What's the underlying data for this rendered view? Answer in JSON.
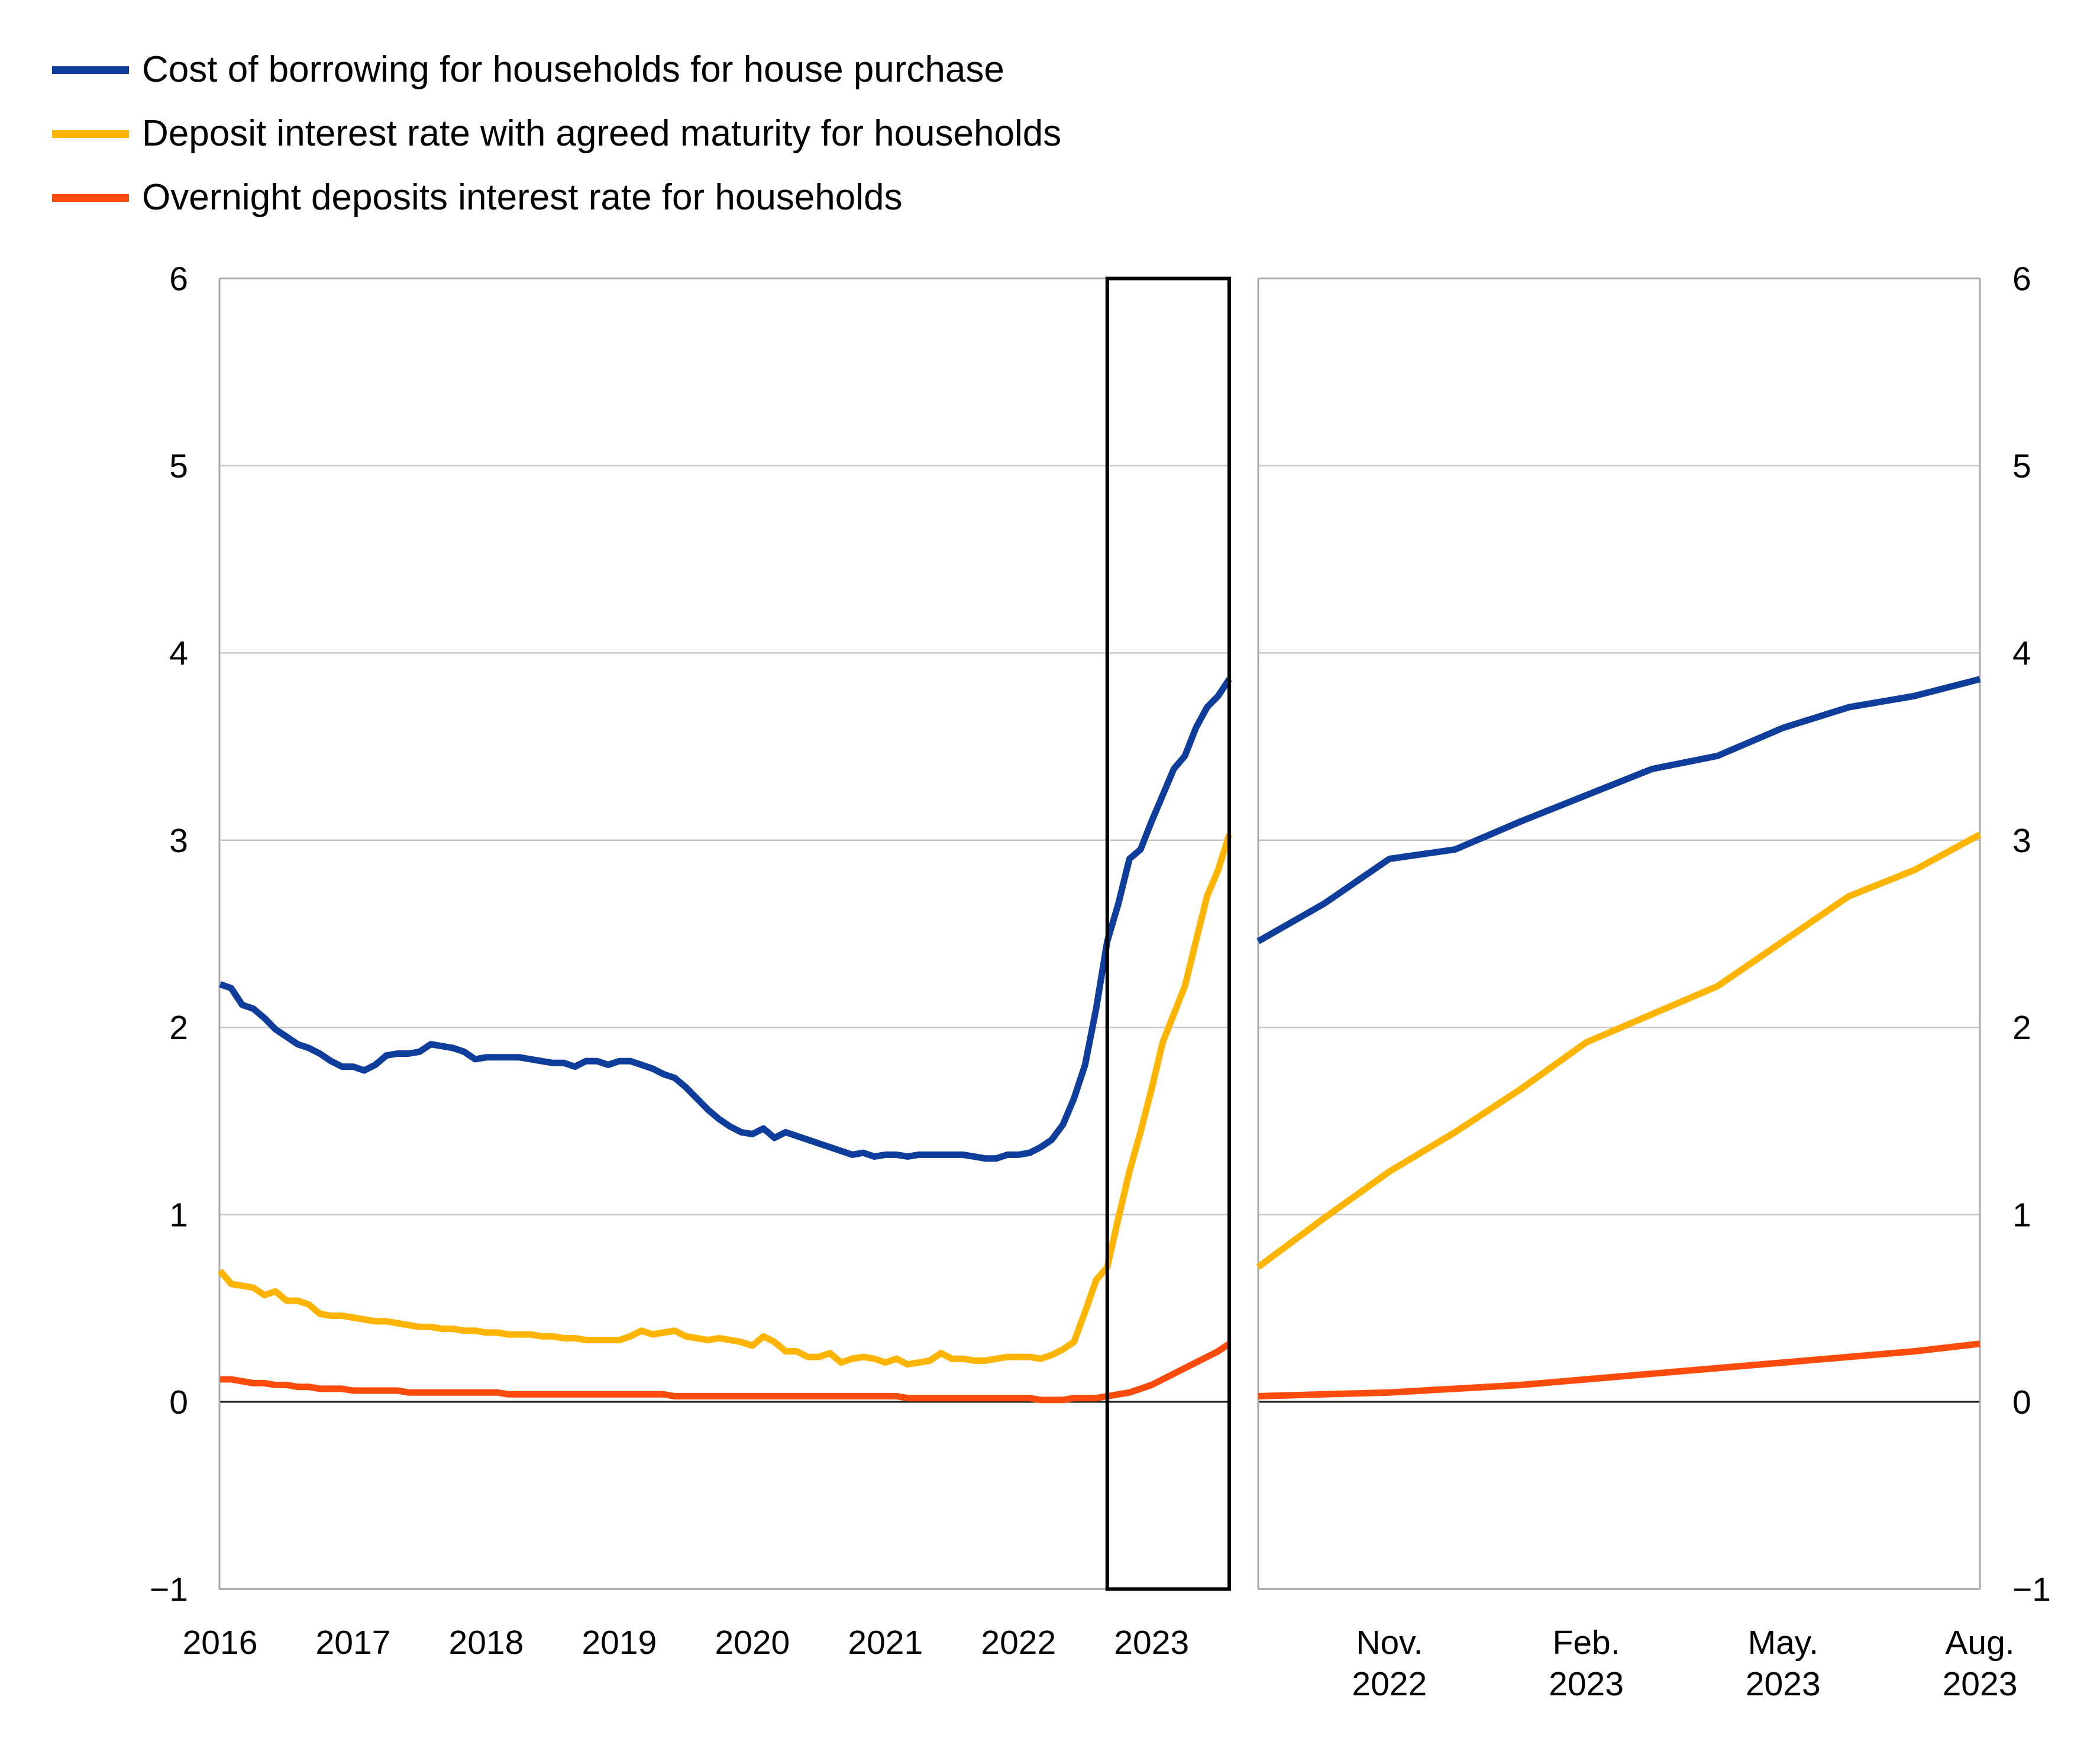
{
  "legend": {
    "items": [
      {
        "label": "Cost of borrowing for households for house purchase",
        "color": "#0f3d9c"
      },
      {
        "label": "Deposit interest rate with agreed maturity for households",
        "color": "#ffb400"
      },
      {
        "label": "Overnight deposits interest rate for households",
        "color": "#fc4b0b"
      }
    ]
  },
  "axes": {
    "y_tick_labels": [
      "6",
      "5",
      "4",
      "3",
      "2",
      "1",
      "0",
      "−1"
    ],
    "y_tick_values": [
      6,
      5,
      4,
      3,
      2,
      1,
      0,
      -1
    ],
    "left_x_tick_labels": [
      "2016",
      "2017",
      "2018",
      "2019",
      "2020",
      "2021",
      "2022",
      "2023"
    ],
    "right_x_tick_labels": [
      {
        "line1": "Nov.",
        "line2": "2022"
      },
      {
        "line1": "Feb.",
        "line2": "2023"
      },
      {
        "line1": "May.",
        "line2": "2023"
      },
      {
        "line1": "Aug.",
        "line2": "2023"
      }
    ]
  },
  "chart_data": [
    {
      "type": "line",
      "panel": "left",
      "x_start": "2016-01",
      "x_end": "2023-08",
      "x_frequency": "monthly",
      "x_tick_labels": [
        "2016",
        "2017",
        "2018",
        "2019",
        "2020",
        "2021",
        "2022",
        "2023"
      ],
      "ylim": [
        -1,
        6
      ],
      "grid": "horizontal",
      "highlight_box": {
        "from": "2022-09",
        "to": "2023-08",
        "color": "#000000"
      },
      "series": [
        {
          "name": "Cost of borrowing for households for house purchase",
          "color": "#0f3d9c",
          "values": [
            2.23,
            2.21,
            2.12,
            2.1,
            2.05,
            1.99,
            1.95,
            1.91,
            1.89,
            1.86,
            1.82,
            1.79,
            1.79,
            1.77,
            1.8,
            1.85,
            1.86,
            1.86,
            1.87,
            1.91,
            1.9,
            1.89,
            1.87,
            1.83,
            1.84,
            1.84,
            1.84,
            1.84,
            1.83,
            1.82,
            1.81,
            1.81,
            1.79,
            1.82,
            1.82,
            1.8,
            1.82,
            1.82,
            1.8,
            1.78,
            1.75,
            1.73,
            1.68,
            1.62,
            1.56,
            1.51,
            1.47,
            1.44,
            1.43,
            1.46,
            1.41,
            1.44,
            1.42,
            1.4,
            1.38,
            1.36,
            1.34,
            1.32,
            1.33,
            1.31,
            1.32,
            1.32,
            1.31,
            1.32,
            1.32,
            1.32,
            1.32,
            1.32,
            1.31,
            1.3,
            1.3,
            1.32,
            1.32,
            1.33,
            1.36,
            1.4,
            1.48,
            1.62,
            1.8,
            2.1,
            2.46,
            2.66,
            2.9,
            2.95,
            3.1,
            3.24,
            3.38,
            3.45,
            3.6,
            3.71,
            3.77,
            3.86
          ]
        },
        {
          "name": "Deposit interest rate with agreed maturity for households",
          "color": "#ffb400",
          "values": [
            0.7,
            0.63,
            0.62,
            0.61,
            0.57,
            0.59,
            0.54,
            0.54,
            0.52,
            0.47,
            0.46,
            0.46,
            0.45,
            0.44,
            0.43,
            0.43,
            0.42,
            0.41,
            0.4,
            0.4,
            0.39,
            0.39,
            0.38,
            0.38,
            0.37,
            0.37,
            0.36,
            0.36,
            0.36,
            0.35,
            0.35,
            0.34,
            0.34,
            0.33,
            0.33,
            0.33,
            0.33,
            0.35,
            0.38,
            0.36,
            0.37,
            0.38,
            0.35,
            0.34,
            0.33,
            0.34,
            0.33,
            0.32,
            0.3,
            0.35,
            0.32,
            0.27,
            0.27,
            0.24,
            0.24,
            0.26,
            0.21,
            0.23,
            0.24,
            0.23,
            0.21,
            0.23,
            0.2,
            0.21,
            0.22,
            0.26,
            0.23,
            0.23,
            0.22,
            0.22,
            0.23,
            0.24,
            0.24,
            0.24,
            0.23,
            0.25,
            0.28,
            0.32,
            0.48,
            0.65,
            0.72,
            0.98,
            1.23,
            1.44,
            1.67,
            1.92,
            2.07,
            2.22,
            2.46,
            2.7,
            2.84,
            3.03
          ]
        },
        {
          "name": "Overnight deposits interest rate for households",
          "color": "#fc4b0b",
          "values": [
            0.12,
            0.12,
            0.11,
            0.1,
            0.1,
            0.09,
            0.09,
            0.08,
            0.08,
            0.07,
            0.07,
            0.07,
            0.06,
            0.06,
            0.06,
            0.06,
            0.06,
            0.05,
            0.05,
            0.05,
            0.05,
            0.05,
            0.05,
            0.05,
            0.05,
            0.05,
            0.04,
            0.04,
            0.04,
            0.04,
            0.04,
            0.04,
            0.04,
            0.04,
            0.04,
            0.04,
            0.04,
            0.04,
            0.04,
            0.04,
            0.04,
            0.03,
            0.03,
            0.03,
            0.03,
            0.03,
            0.03,
            0.03,
            0.03,
            0.03,
            0.03,
            0.03,
            0.03,
            0.03,
            0.03,
            0.03,
            0.03,
            0.03,
            0.03,
            0.03,
            0.03,
            0.03,
            0.02,
            0.02,
            0.02,
            0.02,
            0.02,
            0.02,
            0.02,
            0.02,
            0.02,
            0.02,
            0.02,
            0.02,
            0.01,
            0.01,
            0.01,
            0.02,
            0.02,
            0.02,
            0.03,
            0.04,
            0.05,
            0.07,
            0.09,
            0.12,
            0.15,
            0.18,
            0.21,
            0.24,
            0.27,
            0.31
          ]
        }
      ]
    },
    {
      "type": "line",
      "panel": "right",
      "x_start": "2022-09",
      "x_end": "2023-08",
      "x_frequency": "monthly",
      "x_tick_labels": [
        "Nov. 2022",
        "Feb. 2023",
        "May. 2023",
        "Aug. 2023"
      ],
      "x_tick_month_indices": [
        2,
        5,
        8,
        11
      ],
      "ylim": [
        -1,
        6
      ],
      "grid": "horizontal",
      "series": [
        {
          "name": "Cost of borrowing for households for house purchase",
          "color": "#0f3d9c",
          "values": [
            2.46,
            2.66,
            2.9,
            2.95,
            3.1,
            3.24,
            3.38,
            3.45,
            3.6,
            3.71,
            3.77,
            3.86
          ]
        },
        {
          "name": "Deposit interest rate with agreed maturity for households",
          "color": "#ffb400",
          "values": [
            0.72,
            0.98,
            1.23,
            1.44,
            1.67,
            1.92,
            2.07,
            2.22,
            2.46,
            2.7,
            2.84,
            3.03
          ]
        },
        {
          "name": "Overnight deposits interest rate for households",
          "color": "#fc4b0b",
          "values": [
            0.03,
            0.04,
            0.05,
            0.07,
            0.09,
            0.12,
            0.15,
            0.18,
            0.21,
            0.24,
            0.27,
            0.31
          ]
        }
      ]
    }
  ],
  "colors": {
    "grid": "#c8c8c8",
    "frame": "#aaaaaa",
    "zero_line": "#1a1a1a",
    "highlight_box": "#000000"
  }
}
